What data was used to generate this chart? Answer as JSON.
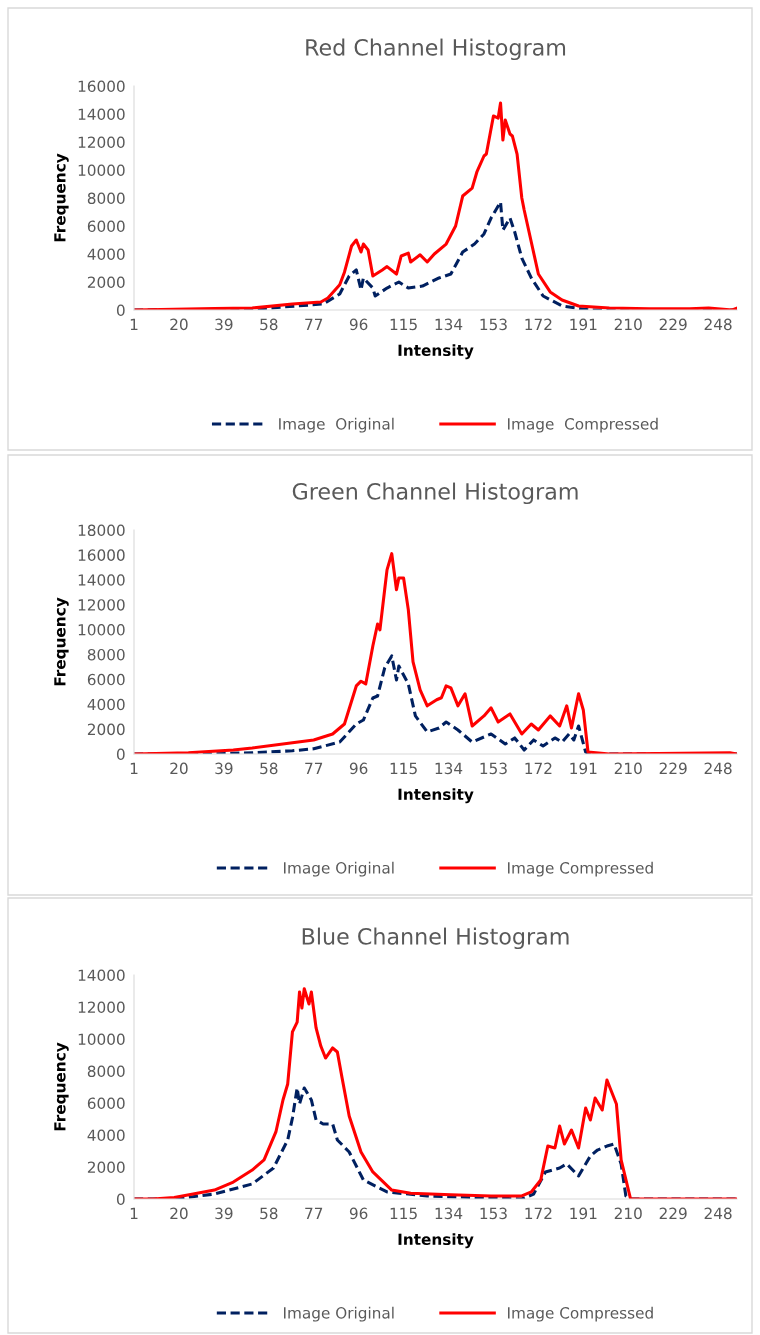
{
  "chart_data": [
    {
      "type": "line",
      "title": "Red Channel Histogram",
      "xlabel": "Intensity",
      "ylabel": "Frequency",
      "xlim": [
        1,
        256
      ],
      "xticks": [
        1,
        20,
        39,
        58,
        77,
        96,
        115,
        134,
        153,
        172,
        191,
        210,
        229,
        248
      ],
      "ylim": [
        0,
        16000
      ],
      "yticks": [
        0,
        2000,
        4000,
        6000,
        8000,
        10000,
        12000,
        14000,
        16000
      ],
      "grid": false,
      "legend": "bottom",
      "series": [
        {
          "name": "Image  Original",
          "color": "#002060",
          "line_style": "dashed",
          "x": [
            1,
            51,
            81,
            88,
            92,
            95,
            97,
            98,
            102,
            103,
            108,
            113,
            117,
            123,
            130,
            135,
            140,
            145,
            149,
            152,
            156,
            157,
            160,
            162,
            165,
            169,
            174,
            182,
            194,
            256
          ],
          "values": [
            0,
            50,
            430,
            1140,
            2430,
            2860,
            1430,
            2290,
            1570,
            1000,
            1570,
            2000,
            1570,
            1710,
            2290,
            2570,
            4140,
            4710,
            5430,
            6570,
            7710,
            5710,
            6570,
            5570,
            3710,
            2290,
            1000,
            290,
            0,
            0
          ]
        },
        {
          "name": "Image  Compressed",
          "color": "#ff0000",
          "line_style": "solid",
          "x": [
            1,
            35,
            51,
            68,
            80,
            83,
            88,
            90,
            93,
            95,
            97,
            98,
            100,
            102,
            106,
            108,
            112,
            114,
            117,
            118,
            122,
            125,
            128,
            133,
            137,
            140,
            144,
            146,
            149,
            150,
            153,
            155,
            156,
            157,
            158,
            160,
            161,
            163,
            165,
            166,
            169,
            172,
            177,
            182,
            189,
            202,
            219,
            236,
            244,
            254,
            256
          ],
          "values": [
            0,
            100,
            140,
            430,
            570,
            860,
            1800,
            2700,
            4570,
            5000,
            4140,
            4710,
            4290,
            2430,
            2860,
            3100,
            2570,
            3860,
            4060,
            3430,
            3940,
            3430,
            4000,
            4710,
            6000,
            8140,
            8710,
            9860,
            11000,
            11140,
            13860,
            13710,
            14790,
            12140,
            13570,
            12570,
            12430,
            11140,
            8000,
            7140,
            4860,
            2570,
            1290,
            710,
            290,
            140,
            90,
            90,
            140,
            0,
            140
          ]
        }
      ]
    },
    {
      "type": "line",
      "title": "Green Channel Histogram",
      "xlabel": "Intensity",
      "ylabel": "Frequency",
      "xlim": [
        1,
        256
      ],
      "xticks": [
        1,
        20,
        39,
        58,
        77,
        96,
        115,
        134,
        153,
        172,
        191,
        210,
        229,
        248
      ],
      "ylim": [
        0,
        18000
      ],
      "yticks": [
        0,
        2000,
        4000,
        6000,
        8000,
        10000,
        12000,
        14000,
        16000,
        18000
      ],
      "grid": false,
      "legend": "bottom",
      "series": [
        {
          "name": "Image Original",
          "color": "#002060",
          "line_style": "dashed",
          "x": [
            1,
            33,
            51,
            68,
            77,
            88,
            95,
            98,
            102,
            104,
            107,
            110,
            112,
            113,
            117,
            120,
            125,
            130,
            133,
            138,
            144,
            152,
            158,
            162,
            166,
            170,
            174,
            179,
            182,
            185,
            187,
            189,
            192,
            194,
            256
          ],
          "values": [
            0,
            0,
            100,
            260,
            420,
            960,
            2410,
            2730,
            4500,
            4660,
            6910,
            7880,
            5950,
            7070,
            5630,
            3060,
            1770,
            2090,
            2570,
            1930,
            960,
            1610,
            800,
            1290,
            320,
            1130,
            640,
            1290,
            960,
            1610,
            1130,
            2250,
            160,
            0,
            0
          ]
        },
        {
          "name": "Image Compressed",
          "color": "#ff0000",
          "line_style": "solid",
          "x": [
            1,
            24,
            43,
            51,
            68,
            77,
            85,
            90,
            95,
            97,
            99,
            102,
            104,
            105,
            107,
            108,
            110,
            112,
            113,
            115,
            117,
            119,
            122,
            125,
            129,
            131,
            133,
            135,
            138,
            141,
            144,
            149,
            152,
            155,
            160,
            165,
            169,
            172,
            177,
            181,
            184,
            186,
            189,
            191,
            193,
            202,
            253,
            256
          ],
          "values": [
            0,
            100,
            320,
            480,
            900,
            1130,
            1610,
            2410,
            5470,
            5850,
            5630,
            8680,
            10450,
            9970,
            13200,
            14800,
            16100,
            13200,
            14150,
            14150,
            11600,
            7400,
            5160,
            3870,
            4360,
            4520,
            5470,
            5310,
            3870,
            4840,
            2250,
            3060,
            3710,
            2570,
            3220,
            1610,
            2410,
            1930,
            3060,
            2250,
            3870,
            2090,
            4840,
            3540,
            160,
            0,
            100,
            0
          ]
        }
      ]
    },
    {
      "type": "line",
      "title": "Blue Channel Histogram",
      "xlabel": "Intensity",
      "ylabel": "Frequency",
      "xlim": [
        1,
        256
      ],
      "xticks": [
        1,
        20,
        39,
        58,
        77,
        96,
        115,
        134,
        153,
        172,
        191,
        210,
        229,
        248
      ],
      "ylim": [
        0,
        14000
      ],
      "yticks": [
        0,
        2000,
        4000,
        6000,
        8000,
        10000,
        12000,
        14000
      ],
      "grid": false,
      "legend": "bottom",
      "series": [
        {
          "name": "Image Original",
          "color": "#002060",
          "line_style": "dashed",
          "x": [
            1,
            18,
            35,
            51,
            60,
            66,
            68,
            70,
            71,
            73,
            76,
            78,
            81,
            85,
            87,
            92,
            98,
            108,
            125,
            152,
            165,
            170,
            175,
            181,
            184,
            189,
            194,
            197,
            201,
            204,
            207,
            209,
            211,
            256
          ],
          "values": [
            0,
            0,
            310,
            940,
            1940,
            3690,
            5060,
            6940,
            5940,
            6940,
            6190,
            4940,
            4690,
            4690,
            3690,
            2940,
            1190,
            440,
            190,
            60,
            0,
            310,
            1690,
            1940,
            2190,
            1440,
            2690,
            3060,
            3310,
            3440,
            2190,
            190,
            0,
            0
          ]
        },
        {
          "name": "Image Compressed",
          "color": "#ff0000",
          "line_style": "solid",
          "x": [
            1,
            9,
            18,
            26,
            35,
            43,
            51,
            56,
            61,
            64,
            66,
            68,
            70,
            71,
            72,
            73,
            75,
            76,
            78,
            80,
            82,
            85,
            87,
            89,
            92,
            97,
            102,
            110,
            118,
            135,
            152,
            165,
            169,
            173,
            176,
            179,
            181,
            183,
            186,
            189,
            192,
            194,
            196,
            199,
            201,
            205,
            207,
            211,
            256
          ],
          "values": [
            0,
            0,
            100,
            310,
            560,
            1060,
            1810,
            2440,
            4190,
            6190,
            7190,
            10440,
            11060,
            12940,
            11940,
            13140,
            12190,
            12940,
            10690,
            9560,
            8810,
            9440,
            9190,
            7560,
            5190,
            2940,
            1690,
            560,
            360,
            260,
            190,
            190,
            440,
            1190,
            3310,
            3190,
            4560,
            3440,
            4310,
            3190,
            5690,
            4940,
            6310,
            5560,
            7440,
            5940,
            2440,
            0,
            0
          ]
        }
      ]
    }
  ]
}
